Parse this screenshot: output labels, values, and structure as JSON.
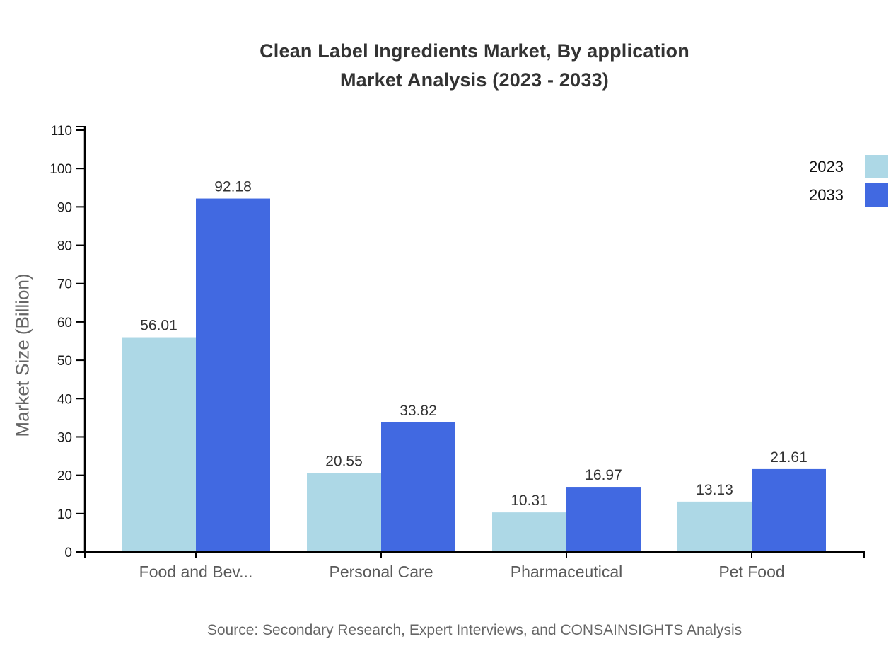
{
  "title": {
    "line1": "Clean Label Ingredients Market, By application",
    "line2": "Market Analysis (2023 - 2033)"
  },
  "ylabel": "Market Size (Billion)",
  "source": "Source: Secondary Research, Expert Interviews, and CONSAINSIGHTS Analysis",
  "legend": [
    {
      "label": "2023",
      "color": "#ADD8E6"
    },
    {
      "label": "2033",
      "color": "#4169E1"
    }
  ],
  "colors": {
    "series_2023": "#ADD8E6",
    "series_2033": "#4169E1",
    "axis": "#000000",
    "tick_label": "#1a1a1a",
    "category_label": "#595959",
    "value_label": "#333333",
    "title_text": "#333333",
    "muted_text": "#666666"
  },
  "chart_data": {
    "type": "bar",
    "title": "Clean Label Ingredients Market, By application Market Analysis (2023 - 2033)",
    "categories": [
      "Food and Bev...",
      "Personal Care",
      "Pharmaceutical",
      "Pet Food"
    ],
    "series": [
      {
        "name": "2023",
        "color": "#ADD8E6",
        "values": [
          56.01,
          20.55,
          10.31,
          13.13
        ]
      },
      {
        "name": "2033",
        "color": "#4169E1",
        "values": [
          92.18,
          33.82,
          16.97,
          21.61
        ]
      }
    ],
    "xlabel": "",
    "ylabel": "Market Size (Billion)",
    "ylim": [
      0,
      110
    ],
    "ytick_step": 10,
    "yticks": [
      0,
      10,
      20,
      30,
      40,
      50,
      60,
      70,
      80,
      90,
      100,
      110
    ],
    "grid": false,
    "value_labels": true,
    "legend_position": "top-right"
  }
}
